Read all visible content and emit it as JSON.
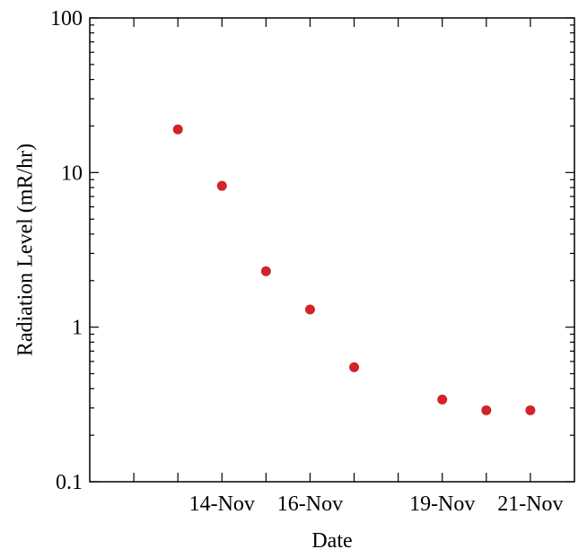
{
  "chart_data": {
    "type": "scatter",
    "xlabel": "Date",
    "ylabel": "Radiation Level (mR/hr)",
    "y_scale": "log",
    "ylim": [
      0.1,
      100
    ],
    "y_ticks": [
      {
        "value": 0.1,
        "label": "0.1"
      },
      {
        "value": 1,
        "label": "1"
      },
      {
        "value": 10,
        "label": "10"
      },
      {
        "value": 100,
        "label": "100"
      }
    ],
    "xlim": [
      "2011-11-11",
      "2011-11-22"
    ],
    "x_major_ticks": [
      {
        "value": "2011-11-14",
        "label": "14-Nov"
      },
      {
        "value": "2011-11-16",
        "label": "16-Nov"
      },
      {
        "value": "2011-11-19",
        "label": "19-Nov"
      },
      {
        "value": "2011-11-21",
        "label": "21-Nov"
      }
    ],
    "x_minor_ticks": [
      "2011-11-12",
      "2011-11-13",
      "2011-11-15",
      "2011-11-17",
      "2011-11-18",
      "2011-11-20"
    ],
    "marker_color": "#d2232a",
    "grid": false,
    "legend": "none",
    "points": [
      {
        "x": "2011-11-13",
        "y": 19
      },
      {
        "x": "2011-11-14",
        "y": 8.2
      },
      {
        "x": "2011-11-15",
        "y": 2.3
      },
      {
        "x": "2011-11-16",
        "y": 1.3
      },
      {
        "x": "2011-11-17",
        "y": 0.55
      },
      {
        "x": "2011-11-19",
        "y": 0.34
      },
      {
        "x": "2011-11-20",
        "y": 0.29
      },
      {
        "x": "2011-11-21",
        "y": 0.29
      }
    ]
  }
}
